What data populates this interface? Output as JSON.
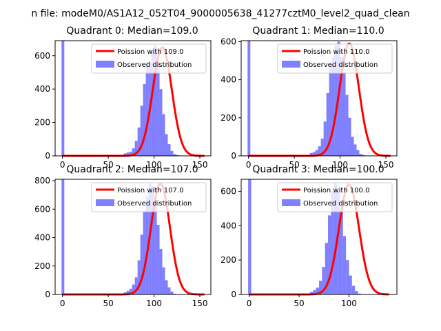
{
  "figure": {
    "title": "n file: modeM0/AS1A12_052T04_9000005638_41277cztM0_level2_quad_clean"
  },
  "colors": {
    "hist": "#7f7fff",
    "curve": "#ff0000",
    "axis": "#000000"
  },
  "chart_data": [
    {
      "type": "bar",
      "title": "Quadrant 0: Median=109.0",
      "xlim": [
        -8,
        162
      ],
      "ylim": [
        0,
        690
      ],
      "xticks": [
        0,
        50,
        100,
        150
      ],
      "yticks": [
        0,
        200,
        400,
        600
      ],
      "xtick_labels": [
        "0",
        "50",
        "100",
        "150"
      ],
      "ytick_labels": [
        "0",
        "200",
        "400",
        "600"
      ],
      "legend": [
        "Poission with 109.0",
        "Observed distribution"
      ],
      "spike": {
        "x": 0,
        "value": 690
      },
      "hist": {
        "start": 64,
        "width": 3,
        "values": [
          5,
          15,
          20,
          25,
          45,
          90,
          170,
          300,
          430,
          560,
          560,
          640,
          660,
          560,
          400,
          250,
          130,
          70,
          30,
          10,
          5
        ]
      },
      "curve": {
        "mean": 109,
        "sigma": 10.44,
        "peak": 650,
        "range": [
          0,
          155
        ]
      }
    },
    {
      "type": "bar",
      "title": "Quadrant 1: Median=110.0",
      "xlim": [
        -8,
        162
      ],
      "ylim": [
        0,
        605
      ],
      "xticks": [
        0,
        50,
        100,
        150
      ],
      "yticks": [
        0,
        200,
        400,
        600
      ],
      "xtick_labels": [
        "0",
        "50",
        "100",
        "150"
      ],
      "ytick_labels": [
        "0",
        "200",
        "400",
        "600"
      ],
      "legend": [
        "Poission with 110.0",
        "Observed distribution"
      ],
      "spike": {
        "x": 0,
        "value": 605
      },
      "hist": {
        "start": 64,
        "width": 3,
        "values": [
          5,
          15,
          20,
          30,
          50,
          90,
          180,
          330,
          480,
          520,
          580,
          600,
          520,
          440,
          320,
          200,
          100,
          60,
          30,
          10,
          5
        ]
      },
      "curve": {
        "mean": 110,
        "sigma": 10.49,
        "peak": 590,
        "range": [
          0,
          155
        ]
      }
    },
    {
      "type": "bar",
      "title": "Quadrant 2: Median=107.0",
      "xlim": [
        -8,
        162
      ],
      "ylim": [
        0,
        810
      ],
      "xticks": [
        0,
        50,
        100,
        150
      ],
      "yticks": [
        0,
        200,
        400,
        600,
        800
      ],
      "xtick_labels": [
        "0",
        "50",
        "100",
        "150"
      ],
      "ytick_labels": [
        "0",
        "200",
        "400",
        "600",
        "800"
      ],
      "legend": [
        "Poission with 107.0",
        "Observed distribution"
      ],
      "spike": {
        "x": 0,
        "value": 810
      },
      "hist": {
        "start": 64,
        "width": 3,
        "values": [
          5,
          15,
          25,
          40,
          70,
          120,
          240,
          420,
          580,
          690,
          780,
          760,
          650,
          490,
          320,
          190,
          100,
          50,
          20,
          5
        ]
      },
      "curve": {
        "mean": 107,
        "sigma": 10.34,
        "peak": 780,
        "range": [
          0,
          155
        ]
      }
    },
    {
      "type": "bar",
      "title": "Quadrant 3: Median=100.0",
      "xlim": [
        -8,
        148
      ],
      "ylim": [
        0,
        670
      ],
      "xticks": [
        0,
        50,
        100
      ],
      "yticks": [
        0,
        200,
        400,
        600
      ],
      "xtick_labels": [
        "0",
        "50",
        "100"
      ],
      "ytick_labels": [
        "0",
        "200",
        "400",
        "600"
      ],
      "legend": [
        "Poission with 100.0",
        "Observed distribution"
      ],
      "spike": {
        "x": 0,
        "value": 670
      },
      "hist": {
        "start": 58,
        "width": 3,
        "values": [
          5,
          15,
          25,
          40,
          80,
          160,
          300,
          460,
          600,
          650,
          600,
          480,
          340,
          200,
          110,
          50,
          20,
          5
        ]
      },
      "curve": {
        "mean": 100,
        "sigma": 10.0,
        "peak": 640,
        "range": [
          0,
          140
        ]
      }
    }
  ]
}
